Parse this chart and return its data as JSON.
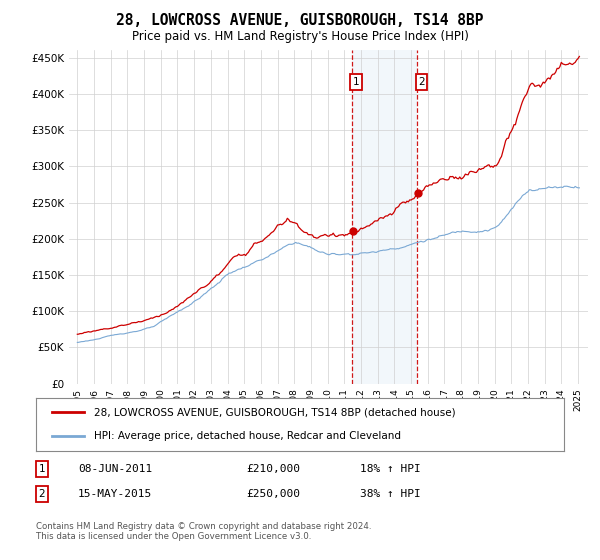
{
  "title": "28, LOWCROSS AVENUE, GUISBOROUGH, TS14 8BP",
  "subtitle": "Price paid vs. HM Land Registry's House Price Index (HPI)",
  "property_label": "28, LOWCROSS AVENUE, GUISBOROUGH, TS14 8BP (detached house)",
  "hpi_label": "HPI: Average price, detached house, Redcar and Cleveland",
  "property_color": "#cc0000",
  "hpi_color": "#7aa8d4",
  "highlight_fill": "#dce9f5",
  "t1_year": 2011.44,
  "t2_year": 2015.37,
  "t1_price": 210000,
  "t2_price": 250000,
  "ylim": [
    0,
    460000
  ],
  "yticks": [
    0,
    50000,
    100000,
    150000,
    200000,
    250000,
    300000,
    350000,
    400000,
    450000
  ],
  "xlim_left": 1994.5,
  "xlim_right": 2025.6,
  "xlabel_years": [
    1995,
    1996,
    1997,
    1998,
    1999,
    2000,
    2001,
    2002,
    2003,
    2004,
    2005,
    2006,
    2007,
    2008,
    2009,
    2010,
    2011,
    2012,
    2013,
    2014,
    2015,
    2016,
    2017,
    2018,
    2019,
    2020,
    2021,
    2022,
    2023,
    2024,
    2025
  ],
  "transaction1": {
    "date": "08-JUN-2011",
    "price": 210000,
    "hpi_pct": "18%",
    "direction": "↑"
  },
  "transaction2": {
    "date": "15-MAY-2015",
    "price": 250000,
    "hpi_pct": "38%",
    "direction": "↑"
  },
  "footer": "Contains HM Land Registry data © Crown copyright and database right 2024.\nThis data is licensed under the Open Government Licence v3.0.",
  "background_color": "#ffffff",
  "grid_color": "#d0d0d0"
}
